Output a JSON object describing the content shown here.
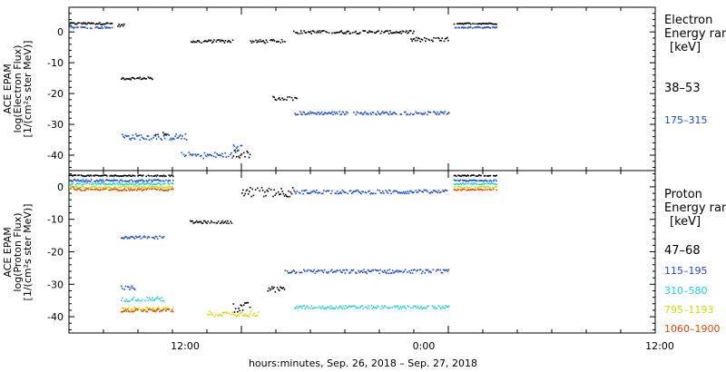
{
  "xlabel": "hours:minutes, Sep. 26, 2018 – Sep. 27, 2018",
  "x_ticks": [
    "12:00",
    "0:00",
    "12:00"
  ],
  "chart_data": [
    {
      "type": "scatter",
      "ylabel_lines": [
        "ACE EPAM",
        "log(Electron Flux)",
        "[1/(cm²s ster MeV)]"
      ],
      "x_range_hours_from_sep26_0000": [
        2.0,
        36.0
      ],
      "ylim": [
        -45,
        8
      ],
      "y_ticks": [
        0,
        -10,
        -20,
        -30,
        -40
      ],
      "legend": {
        "position": "right",
        "lines": [
          "Electron",
          "Energy range",
          "[keV]"
        ],
        "entries": [
          "38–53",
          "175–315"
        ]
      },
      "series": [
        {
          "name": "38–53",
          "color": "#000000",
          "segments": [
            {
              "x": [
                2.0,
                4.5
              ],
              "y": 2.8,
              "jitter": 0.3
            },
            {
              "x": [
                4.8,
                5.2
              ],
              "y": 2.2,
              "jitter": 0.4
            },
            {
              "x": [
                5.0,
                6.8
              ],
              "y": -15.0,
              "jitter": 0.4
            },
            {
              "x": [
                7.0,
                7.6
              ],
              "y": -33.0,
              "jitter": 1.0
            },
            {
              "x": [
                9.0,
                11.5
              ],
              "y": -3.0,
              "jitter": 0.5
            },
            {
              "x": [
                11.5,
                12.5
              ],
              "y": -39.5,
              "jitter": 1.5
            },
            {
              "x": [
                12.5,
                14.5
              ],
              "y": -3.0,
              "jitter": 0.6
            },
            {
              "x": [
                13.8,
                15.2
              ],
              "y": -21.5,
              "jitter": 0.6
            },
            {
              "x": [
                15.0,
                22.0
              ],
              "y": 0.0,
              "jitter": 0.5
            },
            {
              "x": [
                21.8,
                24.0
              ],
              "y": -2.5,
              "jitter": 0.8
            },
            {
              "x": [
                24.3,
                26.8
              ],
              "y": 2.8,
              "jitter": 0.2
            }
          ]
        },
        {
          "name": "175–315",
          "color": "#1a4bd8",
          "segments": [
            {
              "x": [
                2.0,
                4.5
              ],
              "y": 1.5,
              "jitter": 0.3
            },
            {
              "x": [
                5.0,
                8.8
              ],
              "y": -34.0,
              "jitter": 1.0
            },
            {
              "x": [
                8.5,
                11.5
              ],
              "y": -40.0,
              "jitter": 1.0
            },
            {
              "x": [
                11.5,
                12.0
              ],
              "y": -37.5,
              "jitter": 1.0
            },
            {
              "x": [
                15.0,
                24.0
              ],
              "y": -26.3,
              "jitter": 0.5
            },
            {
              "x": [
                24.3,
                26.8
              ],
              "y": 1.5,
              "jitter": 0.2
            }
          ]
        }
      ]
    },
    {
      "type": "scatter",
      "ylabel_lines": [
        "ACE EPAM",
        "log(Proton Flux)",
        "[1/(cm²s ster MeV)]"
      ],
      "x_range_hours_from_sep26_0000": [
        2.0,
        36.0
      ],
      "ylim": [
        -45,
        5
      ],
      "y_ticks": [
        0,
        -10,
        -20,
        -30,
        -40
      ],
      "legend": {
        "position": "right",
        "lines": [
          "Proton",
          "Energy range",
          "[keV]"
        ],
        "entries": [
          "47–68",
          "115–195",
          "310–580",
          "795–1193",
          "1060–1900"
        ]
      },
      "series": [
        {
          "name": "47–68",
          "color": "#000000",
          "segments": [
            {
              "x": [
                2.0,
                8.0
              ],
              "y": 3.5,
              "jitter": 0.2
            },
            {
              "x": [
                9.0,
                11.5
              ],
              "y": -10.8,
              "jitter": 0.4
            },
            {
              "x": [
                11.5,
                12.5
              ],
              "y": -37.0,
              "jitter": 1.5
            },
            {
              "x": [
                12.0,
                15.0
              ],
              "y": -1.5,
              "jitter": 1.5
            },
            {
              "x": [
                13.5,
                14.5
              ],
              "y": -31.5,
              "jitter": 0.8
            },
            {
              "x": [
                24.3,
                26.8
              ],
              "y": 3.5,
              "jitter": 0.2
            }
          ]
        },
        {
          "name": "115–195",
          "color": "#1a4bd8",
          "segments": [
            {
              "x": [
                2.0,
                8.0
              ],
              "y": 2.0,
              "jitter": 0.3
            },
            {
              "x": [
                5.0,
                7.5
              ],
              "y": -15.5,
              "jitter": 0.4
            },
            {
              "x": [
                5.0,
                5.8
              ],
              "y": -31.0,
              "jitter": 0.7
            },
            {
              "x": [
                15.0,
                24.0
              ],
              "y": -1.5,
              "jitter": 0.6
            },
            {
              "x": [
                14.5,
                24.0
              ],
              "y": -26.0,
              "jitter": 0.6
            },
            {
              "x": [
                24.3,
                26.8
              ],
              "y": 2.0,
              "jitter": 0.2
            }
          ]
        },
        {
          "name": "310–580",
          "color": "#22cfe0",
          "segments": [
            {
              "x": [
                2.0,
                8.0
              ],
              "y": 1.0,
              "jitter": 0.3
            },
            {
              "x": [
                5.0,
                7.5
              ],
              "y": -34.5,
              "jitter": 0.7
            },
            {
              "x": [
                15.0,
                24.0
              ],
              "y": -37.0,
              "jitter": 0.5
            },
            {
              "x": [
                24.3,
                26.8
              ],
              "y": 1.0,
              "jitter": 0.2
            }
          ]
        },
        {
          "name": "795–1193",
          "color": "#d8d800",
          "segments": [
            {
              "x": [
                2.0,
                8.0
              ],
              "y": 0.0,
              "jitter": 0.3
            },
            {
              "x": [
                5.0,
                8.0
              ],
              "y": -37.5,
              "jitter": 0.5
            },
            {
              "x": [
                10.0,
                13.0
              ],
              "y": -39.0,
              "jitter": 0.8
            },
            {
              "x": [
                24.3,
                26.8
              ],
              "y": 0.0,
              "jitter": 0.2
            }
          ]
        },
        {
          "name": "1060–1900",
          "color": "#e24a00",
          "segments": [
            {
              "x": [
                2.0,
                8.0
              ],
              "y": -0.8,
              "jitter": 0.3
            },
            {
              "x": [
                5.0,
                8.0
              ],
              "y": -38.0,
              "jitter": 0.5
            },
            {
              "x": [
                24.3,
                26.8
              ],
              "y": -0.8,
              "jitter": 0.2
            }
          ]
        }
      ]
    }
  ]
}
